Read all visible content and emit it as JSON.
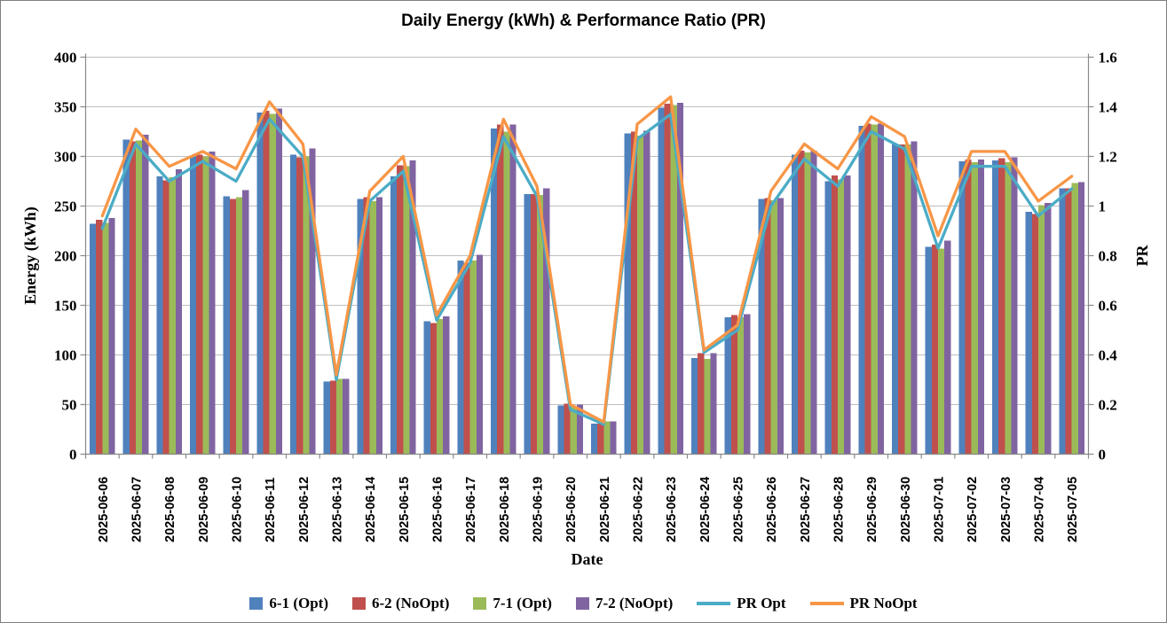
{
  "title": "Daily Energy (kWh) & Performance Ratio (PR)",
  "chart_data": {
    "type": "bar+line-combo",
    "title": "Daily Energy (kWh) & Performance Ratio (PR)",
    "xlabel": "Date",
    "ylabel_left": "Energy (kWh)",
    "ylabel_right": "PR",
    "ylim_left": [
      0,
      400
    ],
    "ytick_step_left": 50,
    "ylim_right": [
      0,
      1.6
    ],
    "ytick_step_right": 0.2,
    "grid": true,
    "legend_position": "bottom",
    "y_left_tick_labels": [
      "0",
      "50",
      "100",
      "150",
      "200",
      "250",
      "300",
      "350",
      "400"
    ],
    "y_right_tick_labels": [
      "0",
      "0.2",
      "0.4",
      "0.6",
      "0.8",
      "1",
      "1.2",
      "1.4",
      "1.6"
    ],
    "categories": [
      "2025-06-06",
      "2025-06-07",
      "2025-06-08",
      "2025-06-09",
      "2025-06-10",
      "2025-06-11",
      "2025-06-12",
      "2025-06-13",
      "2025-06-14",
      "2025-06-15",
      "2025-06-16",
      "2025-06-17",
      "2025-06-18",
      "2025-06-19",
      "2025-06-20",
      "2025-06-21",
      "2025-06-22",
      "2025-06-23",
      "2025-06-24",
      "2025-06-25",
      "2025-06-26",
      "2025-06-27",
      "2025-06-28",
      "2025-06-29",
      "2025-06-30",
      "2025-07-01",
      "2025-07-02",
      "2025-07-03",
      "2025-07-04",
      "2025-07-05"
    ],
    "series": [
      {
        "name": "6-1 (Opt)",
        "type": "bar",
        "axis": "left",
        "color": "#4F81BD",
        "values": [
          232,
          317,
          280,
          300,
          260,
          344,
          302,
          73,
          257,
          280,
          134,
          195,
          328,
          262,
          49,
          31,
          323,
          349,
          97,
          138,
          257,
          302,
          275,
          331,
          313,
          209,
          295,
          296,
          244,
          268
        ]
      },
      {
        "name": "6-2 (NoOpt)",
        "type": "bar",
        "axis": "left",
        "color": "#C0504D",
        "values": [
          236,
          315,
          276,
          302,
          257,
          346,
          299,
          74,
          259,
          291,
          132,
          193,
          332,
          262,
          51,
          31,
          325,
          353,
          102,
          140,
          258,
          306,
          281,
          333,
          312,
          211,
          297,
          298,
          242,
          268
        ]
      },
      {
        "name": "7-1 (Opt)",
        "type": "bar",
        "axis": "left",
        "color": "#9BBB59",
        "values": [
          233,
          316,
          279,
          300,
          259,
          343,
          300,
          76,
          255,
          290,
          136,
          195,
          325,
          261,
          48,
          33,
          321,
          352,
          96,
          138,
          256,
          304,
          277,
          332,
          312,
          207,
          294,
          294,
          251,
          273
        ]
      },
      {
        "name": "7-2 (NoOpt)",
        "type": "bar",
        "axis": "left",
        "color": "#8064A2",
        "values": [
          238,
          322,
          287,
          305,
          266,
          348,
          308,
          76,
          259,
          296,
          139,
          201,
          332,
          268,
          50,
          33,
          326,
          354,
          102,
          141,
          258,
          306,
          281,
          333,
          315,
          215,
          297,
          299,
          253,
          274
        ]
      },
      {
        "name": "PR Opt",
        "type": "line",
        "axis": "right",
        "color": "#4BACC6",
        "values": [
          0.91,
          1.25,
          1.1,
          1.18,
          1.1,
          1.35,
          1.2,
          0.3,
          1.02,
          1.14,
          0.54,
          0.77,
          1.28,
          1.04,
          0.18,
          0.12,
          1.27,
          1.37,
          0.41,
          0.5,
          1.0,
          1.19,
          1.08,
          1.3,
          1.23,
          0.83,
          1.16,
          1.16,
          0.96,
          1.07
        ]
      },
      {
        "name": "PR NoOpt",
        "type": "line",
        "axis": "right",
        "color": "#F79646",
        "values": [
          0.96,
          1.31,
          1.16,
          1.22,
          1.15,
          1.42,
          1.25,
          0.32,
          1.06,
          1.2,
          0.56,
          0.8,
          1.35,
          1.08,
          0.2,
          0.13,
          1.33,
          1.44,
          0.42,
          0.52,
          1.06,
          1.25,
          1.15,
          1.36,
          1.28,
          0.88,
          1.22,
          1.22,
          1.02,
          1.12
        ]
      }
    ],
    "colors": {
      "gridline": "#BFBFBF",
      "axis_line": "#898989",
      "text": "#000000",
      "background": "#FFFFFF"
    }
  }
}
